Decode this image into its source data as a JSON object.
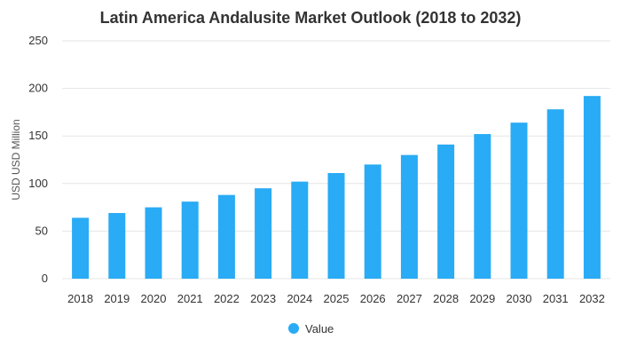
{
  "chart_data": {
    "type": "bar",
    "title": "Latin America Andalusite Market Outlook (2018 to 2032)",
    "xlabel": "",
    "ylabel": "USD USD Million",
    "ylim": [
      0,
      250
    ],
    "yticks": [
      0,
      50,
      100,
      150,
      200,
      250
    ],
    "grid": true,
    "legend_position": "bottom",
    "categories": [
      "2018",
      "2019",
      "2020",
      "2021",
      "2022",
      "2023",
      "2024",
      "2025",
      "2026",
      "2027",
      "2028",
      "2029",
      "2030",
      "2031",
      "2032"
    ],
    "series": [
      {
        "name": "Value",
        "color": "#29abf5",
        "values": [
          64,
          69,
          75,
          81,
          88,
          95,
          102,
          111,
          120,
          130,
          141,
          152,
          164,
          178,
          192
        ]
      }
    ]
  }
}
